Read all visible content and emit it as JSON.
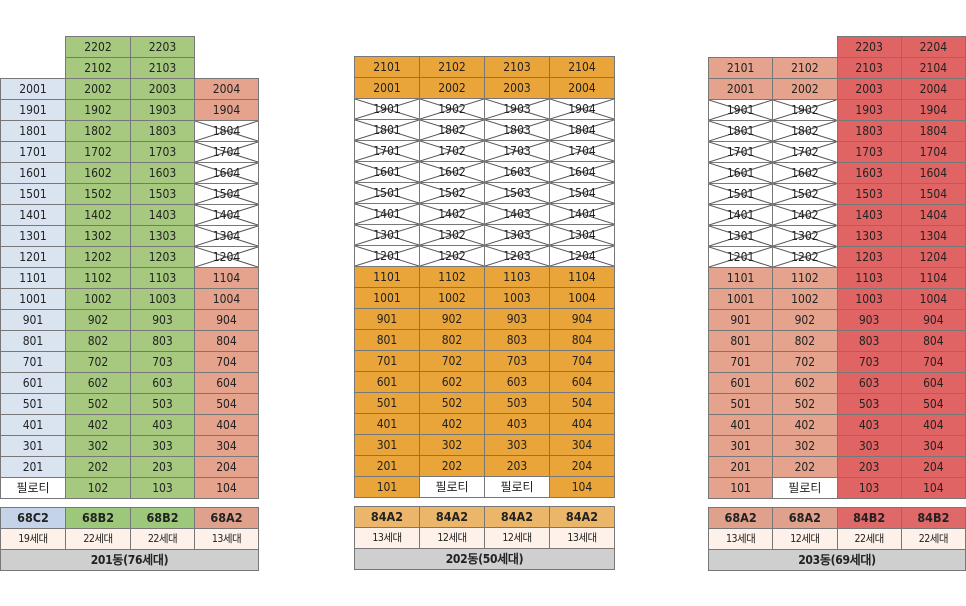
{
  "colors": {
    "blue": "#dae4f1",
    "green": "#a6c97f",
    "salmon": "#e5a38d",
    "orange": "#eaa53a",
    "red": "#e06464",
    "type_blue": "#c4d3e8",
    "type_green": "#9dc77a",
    "type_salmon": "#dfa18b",
    "type_orange": "#ebb66a",
    "type_red": "#df6868",
    "count_bg": "#fdf1e9"
  },
  "buildings": [
    {
      "id": "201",
      "cols": [
        {
          "type": "68C2",
          "households": "19세대",
          "color": "blue"
        },
        {
          "type": "68B2",
          "households": "22세대",
          "color": "green"
        },
        {
          "type": "68B2",
          "households": "22세대",
          "color": "green"
        },
        {
          "type": "68A2",
          "households": "13세대",
          "color": "salmon"
        }
      ],
      "total": "201동(76세대)",
      "rows": [
        [
          null,
          {
            "t": "2202"
          },
          {
            "t": "2203"
          },
          null
        ],
        [
          null,
          {
            "t": "2102"
          },
          {
            "t": "2103"
          },
          null
        ],
        [
          {
            "t": "2001"
          },
          {
            "t": "2002"
          },
          {
            "t": "2003"
          },
          {
            "t": "2004"
          }
        ],
        [
          {
            "t": "1901"
          },
          {
            "t": "1902"
          },
          {
            "t": "1903"
          },
          {
            "t": "1904"
          }
        ],
        [
          {
            "t": "1801"
          },
          {
            "t": "1802"
          },
          {
            "t": "1803"
          },
          {
            "t": "1804",
            "x": true
          }
        ],
        [
          {
            "t": "1701"
          },
          {
            "t": "1702"
          },
          {
            "t": "1703"
          },
          {
            "t": "1704",
            "x": true
          }
        ],
        [
          {
            "t": "1601"
          },
          {
            "t": "1602"
          },
          {
            "t": "1603"
          },
          {
            "t": "1604",
            "x": true
          }
        ],
        [
          {
            "t": "1501"
          },
          {
            "t": "1502"
          },
          {
            "t": "1503"
          },
          {
            "t": "1504",
            "x": true
          }
        ],
        [
          {
            "t": "1401"
          },
          {
            "t": "1402"
          },
          {
            "t": "1403"
          },
          {
            "t": "1404",
            "x": true
          }
        ],
        [
          {
            "t": "1301"
          },
          {
            "t": "1302"
          },
          {
            "t": "1303"
          },
          {
            "t": "1304",
            "x": true
          }
        ],
        [
          {
            "t": "1201"
          },
          {
            "t": "1202"
          },
          {
            "t": "1203"
          },
          {
            "t": "1204",
            "x": true
          }
        ],
        [
          {
            "t": "1101"
          },
          {
            "t": "1102"
          },
          {
            "t": "1103"
          },
          {
            "t": "1104"
          }
        ],
        [
          {
            "t": "1001"
          },
          {
            "t": "1002"
          },
          {
            "t": "1003"
          },
          {
            "t": "1004"
          }
        ],
        [
          {
            "t": "901"
          },
          {
            "t": "902"
          },
          {
            "t": "903"
          },
          {
            "t": "904"
          }
        ],
        [
          {
            "t": "801"
          },
          {
            "t": "802"
          },
          {
            "t": "803"
          },
          {
            "t": "804"
          }
        ],
        [
          {
            "t": "701"
          },
          {
            "t": "702"
          },
          {
            "t": "703"
          },
          {
            "t": "704"
          }
        ],
        [
          {
            "t": "601"
          },
          {
            "t": "602"
          },
          {
            "t": "603"
          },
          {
            "t": "604"
          }
        ],
        [
          {
            "t": "501"
          },
          {
            "t": "502"
          },
          {
            "t": "503"
          },
          {
            "t": "504"
          }
        ],
        [
          {
            "t": "401"
          },
          {
            "t": "402"
          },
          {
            "t": "403"
          },
          {
            "t": "404"
          }
        ],
        [
          {
            "t": "301"
          },
          {
            "t": "302"
          },
          {
            "t": "303"
          },
          {
            "t": "304"
          }
        ],
        [
          {
            "t": "201"
          },
          {
            "t": "202"
          },
          {
            "t": "203"
          },
          {
            "t": "204"
          }
        ],
        [
          {
            "t": "필로티",
            "white": true
          },
          {
            "t": "102"
          },
          {
            "t": "103"
          },
          {
            "t": "104"
          }
        ]
      ]
    },
    {
      "id": "202",
      "cols": [
        {
          "type": "84A2",
          "households": "13세대",
          "color": "orange"
        },
        {
          "type": "84A2",
          "households": "12세대",
          "color": "orange"
        },
        {
          "type": "84A2",
          "households": "12세대",
          "color": "orange"
        },
        {
          "type": "84A2",
          "households": "13세대",
          "color": "orange"
        }
      ],
      "total": "202동(50세대)",
      "rows": [
        [
          null,
          null,
          null,
          null
        ],
        [
          {
            "t": "2101"
          },
          {
            "t": "2102"
          },
          {
            "t": "2103"
          },
          {
            "t": "2104"
          }
        ],
        [
          {
            "t": "2001"
          },
          {
            "t": "2002"
          },
          {
            "t": "2003"
          },
          {
            "t": "2004"
          }
        ],
        [
          {
            "t": "1901",
            "x": true
          },
          {
            "t": "1902",
            "x": true
          },
          {
            "t": "1903",
            "x": true
          },
          {
            "t": "1904",
            "x": true
          }
        ],
        [
          {
            "t": "1801",
            "x": true
          },
          {
            "t": "1802",
            "x": true
          },
          {
            "t": "1803",
            "x": true
          },
          {
            "t": "1804",
            "x": true
          }
        ],
        [
          {
            "t": "1701",
            "x": true
          },
          {
            "t": "1702",
            "x": true
          },
          {
            "t": "1703",
            "x": true
          },
          {
            "t": "1704",
            "x": true
          }
        ],
        [
          {
            "t": "1601",
            "x": true
          },
          {
            "t": "1602",
            "x": true
          },
          {
            "t": "1603",
            "x": true
          },
          {
            "t": "1604",
            "x": true
          }
        ],
        [
          {
            "t": "1501",
            "x": true
          },
          {
            "t": "1502",
            "x": true
          },
          {
            "t": "1503",
            "x": true
          },
          {
            "t": "1504",
            "x": true
          }
        ],
        [
          {
            "t": "1401",
            "x": true
          },
          {
            "t": "1402",
            "x": true
          },
          {
            "t": "1403",
            "x": true
          },
          {
            "t": "1404",
            "x": true
          }
        ],
        [
          {
            "t": "1301",
            "x": true
          },
          {
            "t": "1302",
            "x": true
          },
          {
            "t": "1303",
            "x": true
          },
          {
            "t": "1304",
            "x": true
          }
        ],
        [
          {
            "t": "1201",
            "x": true
          },
          {
            "t": "1202",
            "x": true
          },
          {
            "t": "1203",
            "x": true
          },
          {
            "t": "1204",
            "x": true
          }
        ],
        [
          {
            "t": "1101"
          },
          {
            "t": "1102"
          },
          {
            "t": "1103"
          },
          {
            "t": "1104"
          }
        ],
        [
          {
            "t": "1001"
          },
          {
            "t": "1002"
          },
          {
            "t": "1003"
          },
          {
            "t": "1004"
          }
        ],
        [
          {
            "t": "901"
          },
          {
            "t": "902"
          },
          {
            "t": "903"
          },
          {
            "t": "904"
          }
        ],
        [
          {
            "t": "801"
          },
          {
            "t": "802"
          },
          {
            "t": "803"
          },
          {
            "t": "804"
          }
        ],
        [
          {
            "t": "701"
          },
          {
            "t": "702"
          },
          {
            "t": "703"
          },
          {
            "t": "704"
          }
        ],
        [
          {
            "t": "601"
          },
          {
            "t": "602"
          },
          {
            "t": "603"
          },
          {
            "t": "604"
          }
        ],
        [
          {
            "t": "501"
          },
          {
            "t": "502"
          },
          {
            "t": "503"
          },
          {
            "t": "504"
          }
        ],
        [
          {
            "t": "401"
          },
          {
            "t": "402"
          },
          {
            "t": "403"
          },
          {
            "t": "404"
          }
        ],
        [
          {
            "t": "301"
          },
          {
            "t": "302"
          },
          {
            "t": "303"
          },
          {
            "t": "304"
          }
        ],
        [
          {
            "t": "201"
          },
          {
            "t": "202"
          },
          {
            "t": "203"
          },
          {
            "t": "204"
          }
        ],
        [
          {
            "t": "101"
          },
          {
            "t": "필로티",
            "white": true
          },
          {
            "t": "필로티",
            "white": true
          },
          {
            "t": "104"
          }
        ]
      ]
    },
    {
      "id": "203",
      "cols": [
        {
          "type": "68A2",
          "households": "13세대",
          "color": "salmon"
        },
        {
          "type": "68A2",
          "households": "12세대",
          "color": "salmon"
        },
        {
          "type": "84B2",
          "households": "22세대",
          "color": "red"
        },
        {
          "type": "84B2",
          "households": "22세대",
          "color": "red"
        }
      ],
      "total": "203동(69세대)",
      "rows": [
        [
          null,
          null,
          {
            "t": "2203"
          },
          {
            "t": "2204"
          }
        ],
        [
          {
            "t": "2101"
          },
          {
            "t": "2102"
          },
          {
            "t": "2103"
          },
          {
            "t": "2104"
          }
        ],
        [
          {
            "t": "2001"
          },
          {
            "t": "2002"
          },
          {
            "t": "2003"
          },
          {
            "t": "2004"
          }
        ],
        [
          {
            "t": "1901",
            "x": true
          },
          {
            "t": "1902",
            "x": true
          },
          {
            "t": "1903"
          },
          {
            "t": "1904"
          }
        ],
        [
          {
            "t": "1801",
            "x": true
          },
          {
            "t": "1802",
            "x": true
          },
          {
            "t": "1803"
          },
          {
            "t": "1804"
          }
        ],
        [
          {
            "t": "1701",
            "x": true
          },
          {
            "t": "1702",
            "x": true
          },
          {
            "t": "1703"
          },
          {
            "t": "1704"
          }
        ],
        [
          {
            "t": "1601",
            "x": true
          },
          {
            "t": "1602",
            "x": true
          },
          {
            "t": "1603"
          },
          {
            "t": "1604"
          }
        ],
        [
          {
            "t": "1501",
            "x": true
          },
          {
            "t": "1502",
            "x": true
          },
          {
            "t": "1503"
          },
          {
            "t": "1504"
          }
        ],
        [
          {
            "t": "1401",
            "x": true
          },
          {
            "t": "1402",
            "x": true
          },
          {
            "t": "1403"
          },
          {
            "t": "1404"
          }
        ],
        [
          {
            "t": "1301",
            "x": true
          },
          {
            "t": "1302",
            "x": true
          },
          {
            "t": "1303"
          },
          {
            "t": "1304"
          }
        ],
        [
          {
            "t": "1201",
            "x": true
          },
          {
            "t": "1202",
            "x": true
          },
          {
            "t": "1203"
          },
          {
            "t": "1204"
          }
        ],
        [
          {
            "t": "1101"
          },
          {
            "t": "1102"
          },
          {
            "t": "1103"
          },
          {
            "t": "1104"
          }
        ],
        [
          {
            "t": "1001"
          },
          {
            "t": "1002"
          },
          {
            "t": "1003"
          },
          {
            "t": "1004"
          }
        ],
        [
          {
            "t": "901"
          },
          {
            "t": "902"
          },
          {
            "t": "903"
          },
          {
            "t": "904"
          }
        ],
        [
          {
            "t": "801"
          },
          {
            "t": "802"
          },
          {
            "t": "803"
          },
          {
            "t": "804"
          }
        ],
        [
          {
            "t": "701"
          },
          {
            "t": "702"
          },
          {
            "t": "703"
          },
          {
            "t": "704"
          }
        ],
        [
          {
            "t": "601"
          },
          {
            "t": "602"
          },
          {
            "t": "603"
          },
          {
            "t": "604"
          }
        ],
        [
          {
            "t": "501"
          },
          {
            "t": "502"
          },
          {
            "t": "503"
          },
          {
            "t": "504"
          }
        ],
        [
          {
            "t": "401"
          },
          {
            "t": "402"
          },
          {
            "t": "403"
          },
          {
            "t": "404"
          }
        ],
        [
          {
            "t": "301"
          },
          {
            "t": "302"
          },
          {
            "t": "303"
          },
          {
            "t": "304"
          }
        ],
        [
          {
            "t": "201"
          },
          {
            "t": "202"
          },
          {
            "t": "203"
          },
          {
            "t": "204"
          }
        ],
        [
          {
            "t": "101"
          },
          {
            "t": "필로티",
            "white": true
          },
          {
            "t": "103"
          },
          {
            "t": "104"
          }
        ]
      ]
    }
  ]
}
